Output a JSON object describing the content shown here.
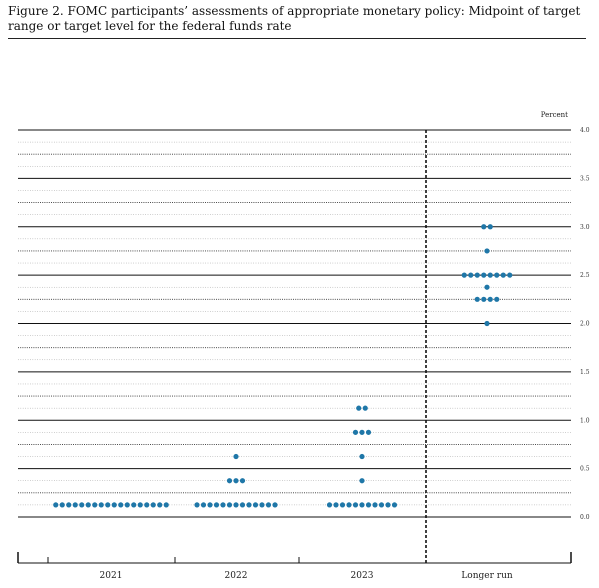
{
  "figure": {
    "caption": "Figure 2. FOMC participants’ assessments of appropriate monetary policy: Midpoint of target range or target level for the federal funds rate"
  },
  "colors": {
    "dot": "#1f77a8",
    "axis": "#111111"
  },
  "chart_data": {
    "type": "scatter",
    "subtype": "dot-plot",
    "title": "",
    "xlabel": "",
    "ylabel": "Percent",
    "ylim": [
      0,
      4.0
    ],
    "y_ticks": [
      "0.0",
      "0.5",
      "1.0",
      "1.5",
      "2.0",
      "2.5",
      "3.0",
      "3.5",
      "4.0"
    ],
    "categories": [
      "2021",
      "2022",
      "2023",
      "Longer run"
    ],
    "grid": true,
    "series": [
      {
        "category": "2021",
        "points": [
          {
            "y": 0.125,
            "count": 18
          }
        ]
      },
      {
        "category": "2022",
        "points": [
          {
            "y": 0.125,
            "count": 13
          },
          {
            "y": 0.375,
            "count": 3
          },
          {
            "y": 0.625,
            "count": 1
          }
        ]
      },
      {
        "category": "2023",
        "points": [
          {
            "y": 0.125,
            "count": 11
          },
          {
            "y": 0.375,
            "count": 1
          },
          {
            "y": 0.625,
            "count": 1
          },
          {
            "y": 0.875,
            "count": 3
          },
          {
            "y": 1.125,
            "count": 2
          }
        ]
      },
      {
        "category": "Longer run",
        "points": [
          {
            "y": 2.0,
            "count": 1
          },
          {
            "y": 2.25,
            "count": 4
          },
          {
            "y": 2.375,
            "count": 1
          },
          {
            "y": 2.5,
            "count": 8
          },
          {
            "y": 2.75,
            "count": 1
          },
          {
            "y": 3.0,
            "count": 2
          }
        ]
      }
    ]
  }
}
